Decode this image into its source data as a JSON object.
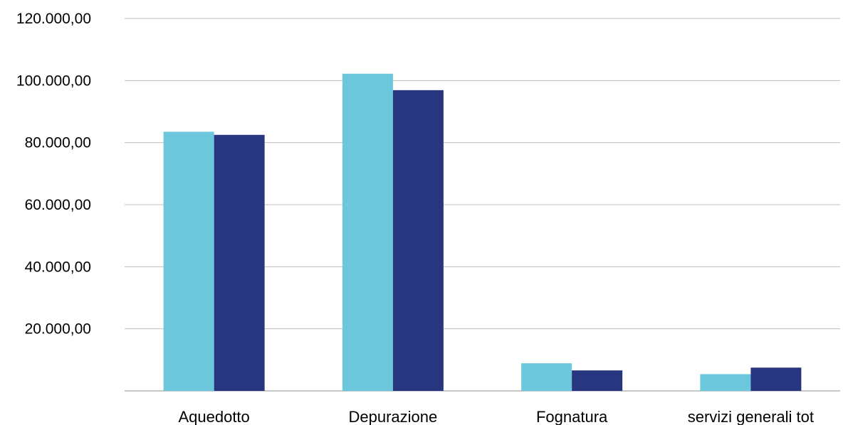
{
  "chart_data": {
    "type": "bar",
    "categories": [
      "Aquedotto",
      "Depurazione",
      "Fognatura",
      "servizi generali tot"
    ],
    "series": [
      {
        "color": "#6cc7dc",
        "values": [
          83500,
          102200,
          8900,
          5400
        ]
      },
      {
        "color": "#283680",
        "values": [
          82500,
          96900,
          6600,
          7500
        ]
      }
    ],
    "ylim": [
      0,
      120000
    ],
    "yticks": [
      20000,
      40000,
      60000,
      80000,
      100000,
      120000
    ],
    "ytick_labels": [
      "20.000,00",
      "40.000,00",
      "60.000,00",
      "80.000,00",
      "100.000,00",
      "120.000,00"
    ],
    "grid": true,
    "legend": "none"
  }
}
